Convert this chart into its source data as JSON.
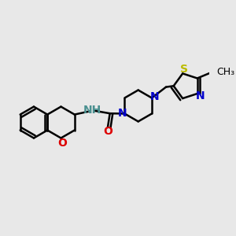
{
  "background_color": "#e8e8e8",
  "bond_color": "#000000",
  "atom_colors": {
    "O_chroman": "#dd0000",
    "O_carbonyl": "#dd0000",
    "N_NH": "#4a9090",
    "N_pip1": "#0000cc",
    "N_pip2": "#0000cc",
    "S": "#bbbb00",
    "N_thiazole": "#0000cc"
  },
  "bond_width": 1.8,
  "font_size": 10,
  "fig_width": 3.0,
  "fig_height": 3.0,
  "xlim": [
    0.0,
    9.5
  ],
  "ylim": [
    0.5,
    7.5
  ]
}
